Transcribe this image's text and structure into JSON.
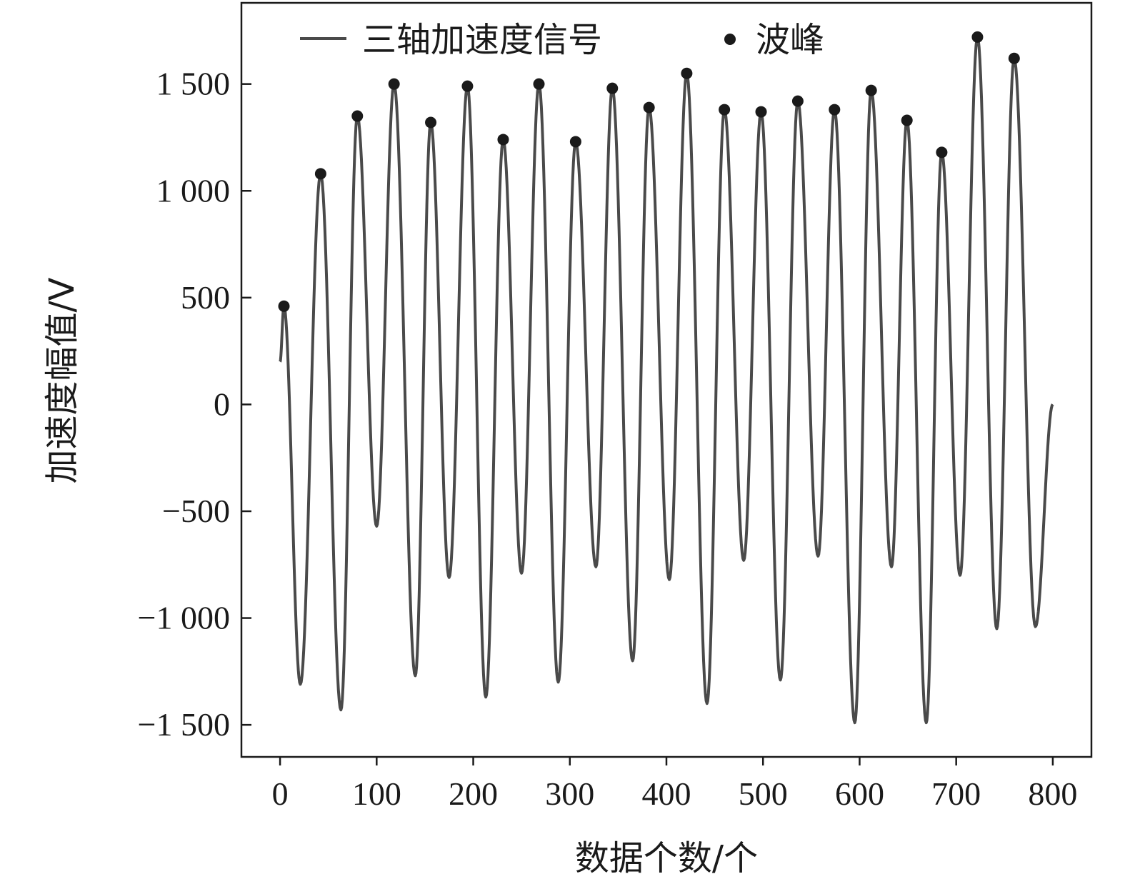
{
  "chart_data": {
    "type": "line",
    "xlabel": "数据个数/个",
    "ylabel": "加速度幅值/V",
    "xlim": [
      -40,
      840
    ],
    "ylim": [
      -1650,
      1880
    ],
    "x_ticks": [
      0,
      100,
      200,
      300,
      400,
      500,
      600,
      700,
      800
    ],
    "x_tick_labels": [
      "0",
      "100",
      "200",
      "300",
      "400",
      "500",
      "600",
      "700",
      "800"
    ],
    "y_ticks": [
      1500,
      1000,
      500,
      0,
      -500,
      -1000,
      -1500
    ],
    "y_tick_labels": [
      "1 500",
      "1 000",
      "500",
      "0",
      "−500",
      "−1 000",
      "−1 500"
    ],
    "grid": false,
    "legend_position": "top",
    "colors": {
      "signal": "#4a4a4a",
      "peak": "#1a1a1a",
      "axis": "#1a1a1a"
    },
    "series": [
      {
        "name": "三轴加速度信号",
        "type": "line",
        "x": [
          0,
          4,
          21,
          42,
          63,
          80,
          100,
          118,
          140,
          156,
          175,
          194,
          213,
          231,
          250,
          268,
          288,
          306,
          327,
          344,
          365,
          382,
          403,
          421,
          442,
          460,
          480,
          498,
          518,
          536,
          557,
          574,
          595,
          612,
          633,
          649,
          669,
          685,
          704,
          722,
          742,
          760,
          782,
          800
        ],
        "y": [
          200,
          460,
          -1310,
          1080,
          -1430,
          1350,
          -570,
          1500,
          -1270,
          1320,
          -810,
          1490,
          -1370,
          1240,
          -790,
          1500,
          -1300,
          1230,
          -760,
          1480,
          -1200,
          1390,
          -820,
          1550,
          -1400,
          1380,
          -730,
          1370,
          -1290,
          1420,
          -710,
          1380,
          -1490,
          1470,
          -760,
          1330,
          -1490,
          1180,
          -800,
          1720,
          -1050,
          1620,
          -1040,
          0
        ]
      },
      {
        "name": "波峰",
        "type": "scatter",
        "x": [
          4,
          42,
          80,
          118,
          156,
          194,
          231,
          268,
          306,
          344,
          382,
          421,
          460,
          498,
          536,
          574,
          612,
          649,
          685,
          722,
          760
        ],
        "y": [
          460,
          1080,
          1350,
          1500,
          1320,
          1490,
          1240,
          1500,
          1230,
          1480,
          1390,
          1550,
          1380,
          1370,
          1420,
          1380,
          1470,
          1330,
          1180,
          1720,
          1620
        ]
      }
    ]
  }
}
